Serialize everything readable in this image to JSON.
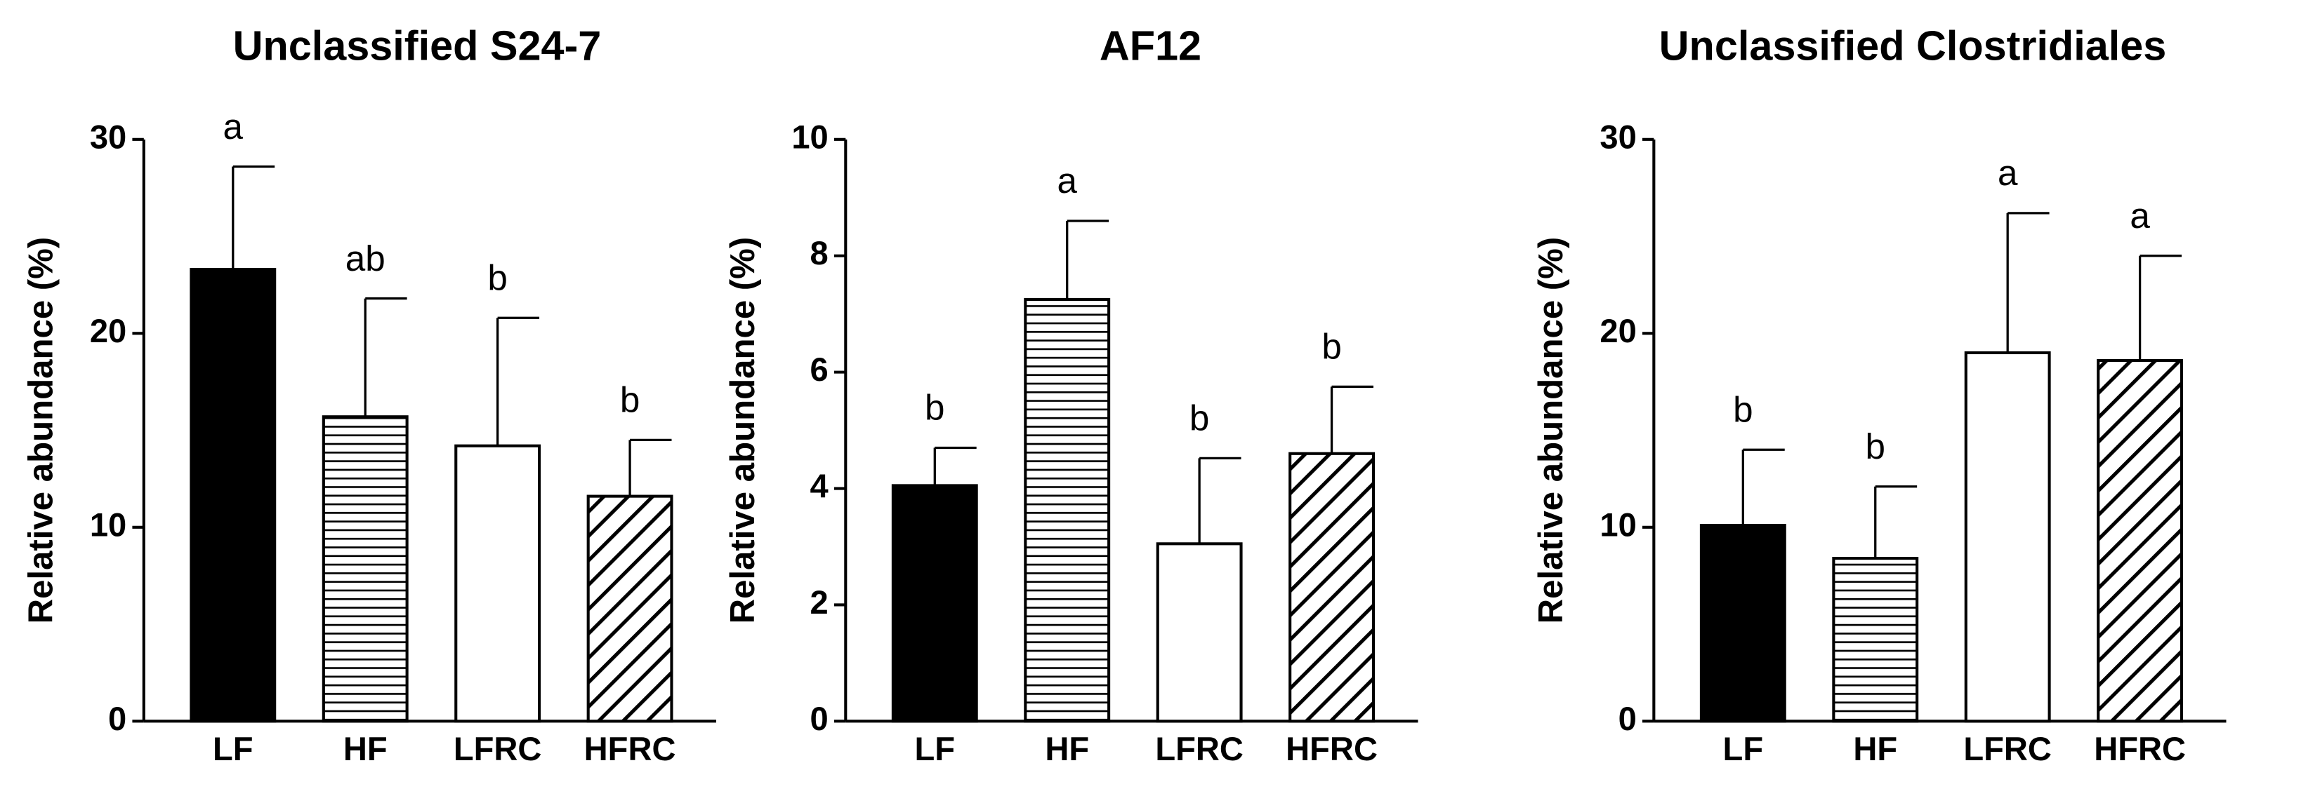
{
  "chart_data": [
    {
      "type": "bar",
      "title": "Unclassified S24-7",
      "y_label": "Relative abundance (%)",
      "categories": [
        "LF",
        "HF",
        "LFRC",
        "HFRC"
      ],
      "values": [
        23.3,
        15.7,
        14.2,
        11.6
      ],
      "errors": [
        5.3,
        6.1,
        6.6,
        2.9
      ],
      "annotations": [
        "a",
        "ab",
        "b",
        "b"
      ],
      "fill_styles": [
        "solid",
        "horizontal",
        "empty",
        "diagonal"
      ],
      "color": "#000000",
      "ylim": [
        0,
        30
      ],
      "yticks": [
        0,
        10,
        20,
        30
      ]
    },
    {
      "type": "bar",
      "title": "AF12",
      "y_label": "Relative abundance (%)",
      "categories": [
        "LF",
        "HF",
        "LFRC",
        "HFRC"
      ],
      "values": [
        4.05,
        7.25,
        3.05,
        4.6
      ],
      "errors": [
        0.65,
        1.35,
        1.47,
        1.15
      ],
      "annotations": [
        "b",
        "a",
        "b",
        "b"
      ],
      "fill_styles": [
        "solid",
        "horizontal",
        "empty",
        "diagonal"
      ],
      "color": "#000000",
      "ylim": [
        0,
        10
      ],
      "yticks": [
        0,
        2,
        4,
        6,
        8,
        10
      ]
    },
    {
      "type": "bar",
      "title": "Unclassified Clostridiales",
      "y_label": "Relative abundance (%)",
      "categories": [
        "LF",
        "HF",
        "LFRC",
        "HFRC"
      ],
      "values": [
        10.1,
        8.4,
        19.0,
        18.6
      ],
      "errors": [
        3.9,
        3.7,
        7.2,
        5.4
      ],
      "annotations": [
        "b",
        "b",
        "a",
        "a"
      ],
      "fill_styles": [
        "solid",
        "horizontal",
        "empty",
        "diagonal"
      ],
      "color": "#000000",
      "ylim": [
        0,
        30
      ],
      "yticks": [
        0,
        10,
        20,
        30
      ]
    }
  ]
}
